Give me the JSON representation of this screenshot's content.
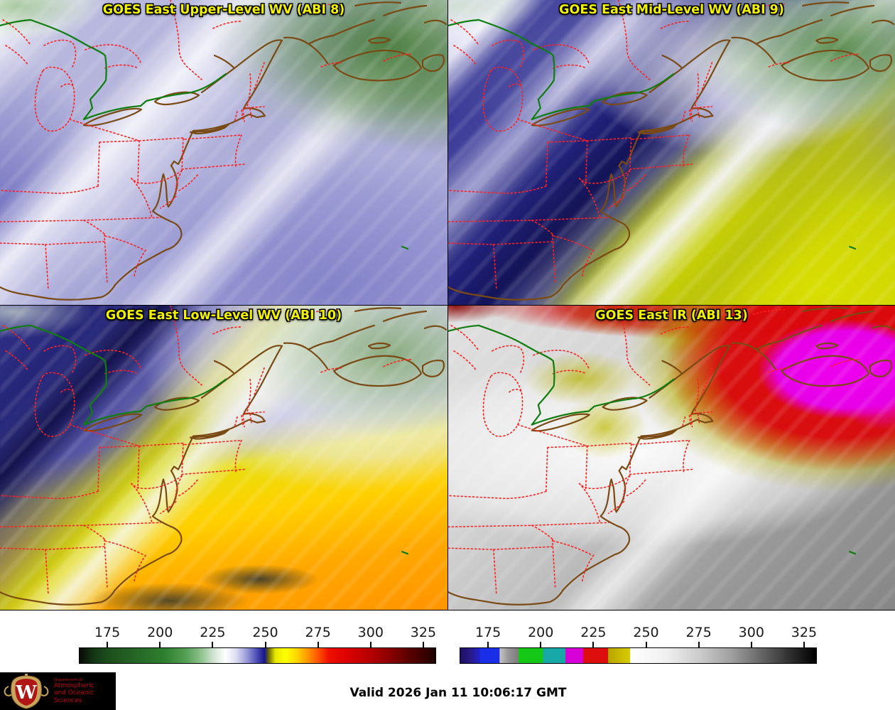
{
  "panels": [
    {
      "id": "upper_wv",
      "title": "GOES East Upper-Level WV (ABI 8)"
    },
    {
      "id": "mid_wv",
      "title": "GOES East Mid-Level WV (ABI 9)"
    },
    {
      "id": "low_wv",
      "title": "GOES East Low-Level WV (ABI 10)"
    },
    {
      "id": "ir",
      "title": "GOES East IR (ABI 13)"
    }
  ],
  "colorbars": {
    "ticks": [
      175,
      200,
      225,
      250,
      275,
      300,
      325
    ],
    "wv": {
      "name": "wv-colorbar",
      "stops": [
        [
          "#0a0a06",
          0
        ],
        [
          "#143614",
          4
        ],
        [
          "#1d4d1d",
          8
        ],
        [
          "#266726",
          16
        ],
        [
          "#2f8030",
          24
        ],
        [
          "#55a055",
          30
        ],
        [
          "#8cc08c",
          34
        ],
        [
          "#cfe3cf",
          37.5
        ],
        [
          "#ffffff",
          41
        ],
        [
          "#dcdcf0",
          44
        ],
        [
          "#9a9ad8",
          47
        ],
        [
          "#4848b4",
          50
        ],
        [
          "#16168c",
          52
        ],
        [
          "#6e6e00",
          53.2
        ],
        [
          "#e8e800",
          55
        ],
        [
          "#ffff00",
          58
        ],
        [
          "#ffd700",
          61
        ],
        [
          "#ff9900",
          64
        ],
        [
          "#ff5500",
          67
        ],
        [
          "#f01000",
          70
        ],
        [
          "#dd0000",
          75
        ],
        [
          "#b40000",
          82
        ],
        [
          "#8c0000",
          87
        ],
        [
          "#600000",
          92
        ],
        [
          "#3c0000",
          96.5
        ],
        [
          "#1e0000",
          100
        ]
      ]
    },
    "ir": {
      "name": "ir-colorbar",
      "stops": [
        [
          "#1e1060",
          0
        ],
        [
          "#2a1a8a",
          3
        ],
        [
          "#2222cc",
          5.5
        ],
        [
          "#1a2ee8",
          5.6
        ],
        [
          "#1a2ee8",
          11
        ],
        [
          "#c4c4c4",
          11.1
        ],
        [
          "#989898",
          13.5
        ],
        [
          "#7c7c7c",
          16.3
        ],
        [
          "#16c816",
          16.4
        ],
        [
          "#16c816",
          23.2
        ],
        [
          "#18a8a8",
          23.3
        ],
        [
          "#18a8a8",
          29.5
        ],
        [
          "#d800d8",
          29.6
        ],
        [
          "#d800d8",
          34.5
        ],
        [
          "#dd0e0e",
          34.6
        ],
        [
          "#dd0e0e",
          41.5
        ],
        [
          "#b8a400",
          41.6
        ],
        [
          "#d8cc00",
          47.7
        ],
        [
          "#ffffff",
          47.8
        ],
        [
          "#efefef",
          58
        ],
        [
          "#c8c8c8",
          68
        ],
        [
          "#a0a0a0",
          76
        ],
        [
          "#6a6a6a",
          84
        ],
        [
          "#3a3a3a",
          91
        ],
        [
          "#161616",
          96.5
        ],
        [
          "#000000",
          100
        ]
      ]
    }
  },
  "footer": {
    "valid": "Valid 2026 Jan 11 10:06:17 GMT"
  },
  "logo": {
    "department": "Department of",
    "line1": "Atmospheric",
    "line2": "and Oceanic Sciences",
    "crest_letter": "W"
  },
  "colors": {
    "title_yellow": "#f2f200",
    "coast": "#7a4a14",
    "state_border": "#ff2020",
    "intl_border": "#0f7d0f",
    "uw_red": "#c5050c"
  }
}
